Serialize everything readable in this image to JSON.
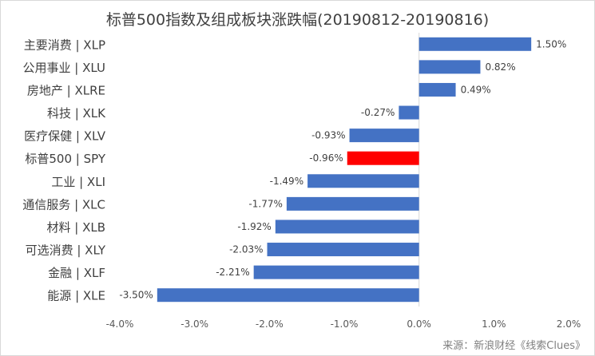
{
  "chart_data": {
    "type": "bar",
    "orientation": "horizontal",
    "title": "标普500指数及组成板块涨跌幅(20190812-20190816)",
    "categories": [
      "主要消费 | XLP",
      "公用事业 | XLU",
      "房地产 | XLRE",
      "科技 | XLK",
      "医疗保健 | XLV",
      "标普500 | SPY",
      "工业 | XLI",
      "通信服务 | XLC",
      "材料 | XLB",
      "可选消费 | XLY",
      "金融 | XLF",
      "能源 | XLE"
    ],
    "values": [
      1.5,
      0.82,
      0.49,
      -0.27,
      -0.93,
      -0.96,
      -1.49,
      -1.77,
      -1.92,
      -2.03,
      -2.21,
      -3.5
    ],
    "data_labels": [
      "1.50%",
      "0.82%",
      "0.49%",
      "-0.27%",
      "-0.93%",
      "-0.96%",
      "-1.49%",
      "-1.77%",
      "-1.92%",
      "-2.03%",
      "-2.21%",
      "-3.50%"
    ],
    "xlim": [
      -4.0,
      2.0
    ],
    "x_ticks": [
      -4.0,
      -3.0,
      -2.0,
      -1.0,
      0.0,
      1.0,
      2.0
    ],
    "x_tick_labels": [
      "-4.0%",
      "-3.0%",
      "-2.0%",
      "-1.0%",
      "0.0%",
      "1.0%",
      "2.0%"
    ],
    "bar_color": "#4472c4",
    "highlight_category": "标普500 | SPY",
    "highlight_color": "#ff0000",
    "grid": false,
    "legend": "none"
  },
  "source": "来源：新浪财经《线索Clues》"
}
